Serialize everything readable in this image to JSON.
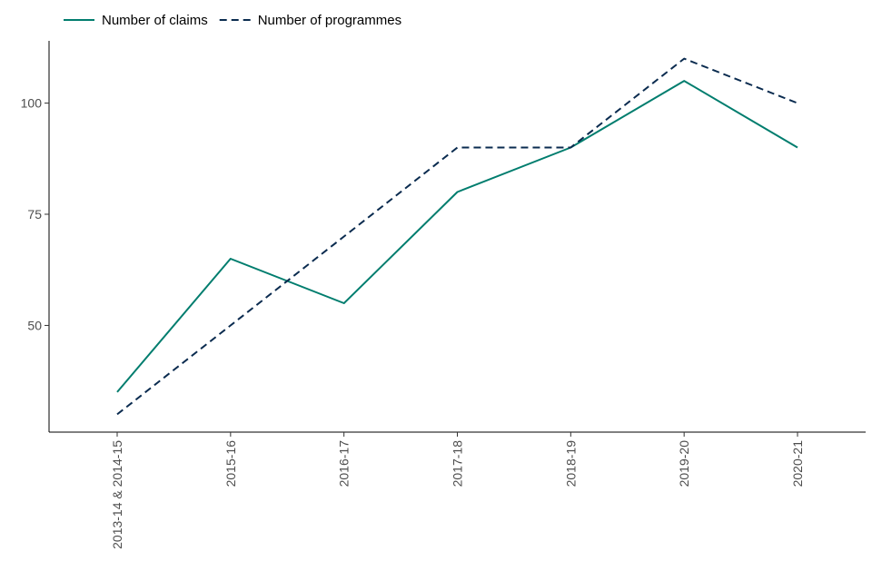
{
  "chart_data": {
    "type": "line",
    "title": "",
    "xlabel": "",
    "ylabel": "",
    "categories": [
      "2013-14 & 2014-15",
      "2015-16",
      "2016-17",
      "2017-18",
      "2018-19",
      "2019-20",
      "2020-21"
    ],
    "series": [
      {
        "name": "Number of claims",
        "values": [
          35,
          65,
          55,
          80,
          90,
          105,
          90
        ],
        "color": "#007d6e",
        "dash": "solid"
      },
      {
        "name": "Number of programmes",
        "values": [
          30,
          50,
          70,
          90,
          90,
          110,
          100
        ],
        "color": "#0a2b4f",
        "dash": "dashed"
      }
    ],
    "ylim": [
      26,
      114
    ],
    "yticks": [
      50,
      75,
      100
    ],
    "grid": false,
    "legend_position": "top-left"
  }
}
